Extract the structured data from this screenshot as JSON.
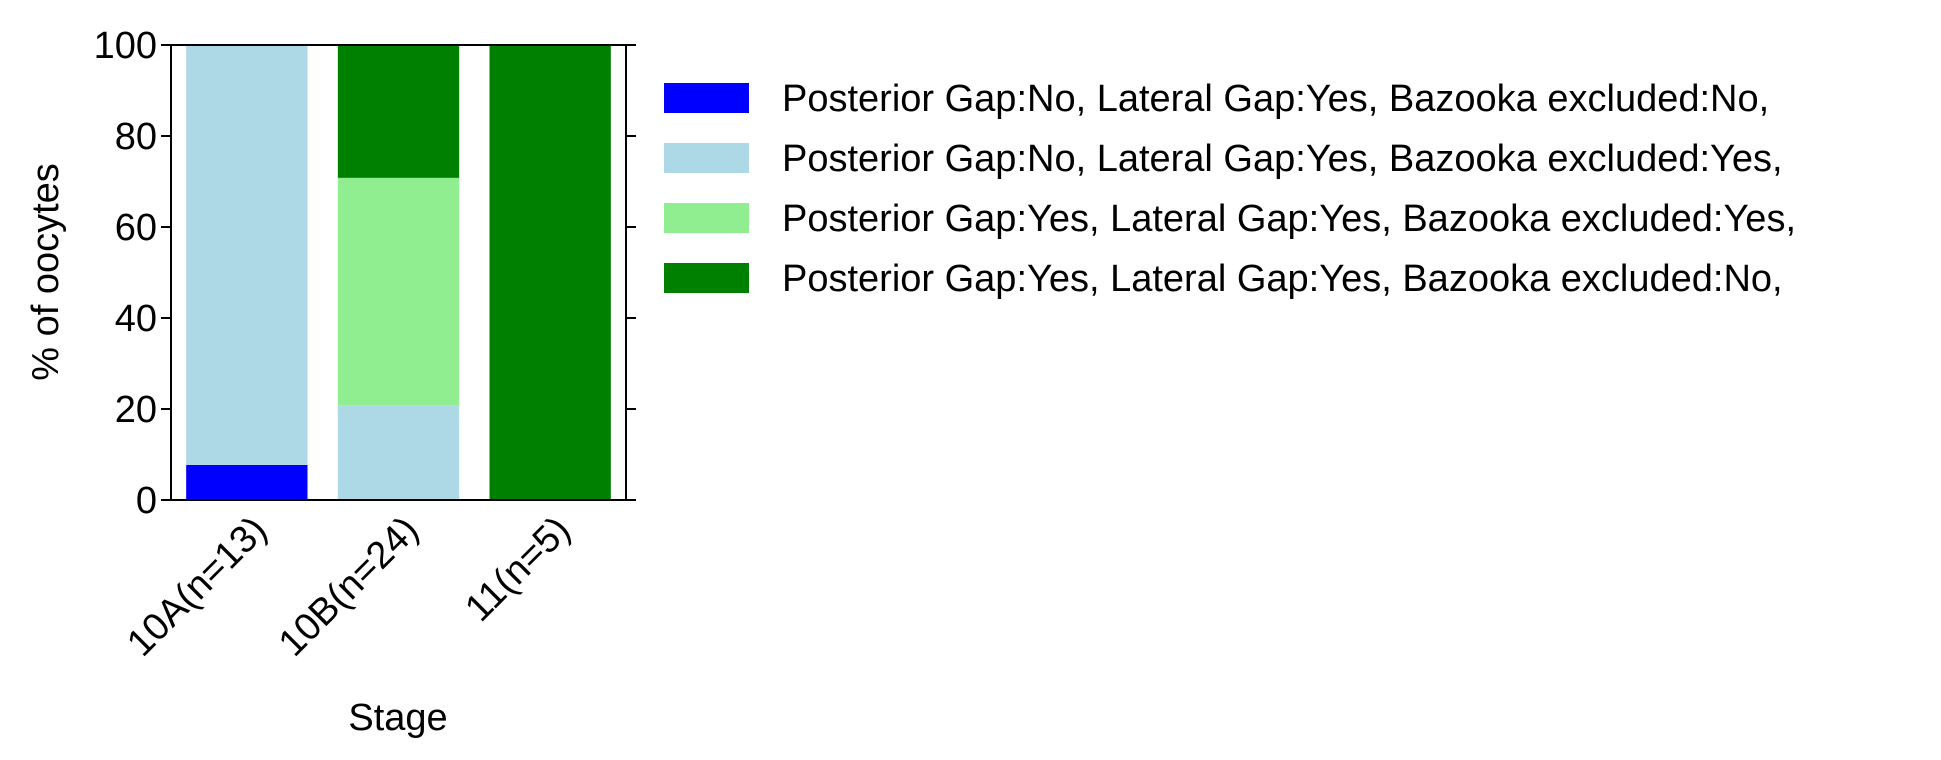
{
  "chart_data": {
    "type": "bar",
    "stacked": true,
    "title": "",
    "xlabel": "Stage",
    "ylabel": "% of oocytes",
    "ylim": [
      0,
      100
    ],
    "yticks": [
      0,
      20,
      40,
      60,
      80,
      100
    ],
    "categories": [
      "10A(n=13)",
      "10B(n=24)",
      "11(n=5)"
    ],
    "series": [
      {
        "name": "Posterior Gap:No, Lateral Gap:Yes, Bazooka excluded:No,",
        "color": "#0000ff",
        "values": [
          7.7,
          0,
          0
        ]
      },
      {
        "name": "Posterior Gap:No, Lateral Gap:Yes, Bazooka excluded:Yes,",
        "color": "#add8e6",
        "values": [
          92.3,
          20.8,
          0
        ]
      },
      {
        "name": "Posterior Gap:Yes, Lateral Gap:Yes, Bazooka excluded:Yes,",
        "color": "#90ee90",
        "values": [
          0,
          50.0,
          0
        ]
      },
      {
        "name": "Posterior Gap:Yes, Lateral Gap:Yes, Bazooka excluded:No,",
        "color": "#008000",
        "values": [
          0,
          29.2,
          100
        ]
      }
    ],
    "legend_position": "right",
    "grid": false
  }
}
